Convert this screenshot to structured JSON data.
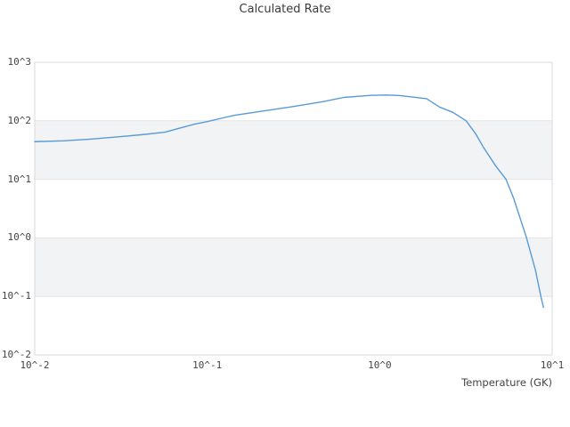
{
  "chart_data": {
    "type": "line",
    "title": "Calculated Rate",
    "xlabel": "Temperature (GK)",
    "ylabel": "",
    "x_scale": "log",
    "y_scale": "log",
    "xlim": [
      0.01,
      10
    ],
    "ylim": [
      0.01,
      1000
    ],
    "grid": "horizontal-decades",
    "legend": "none",
    "x_ticks": [
      {
        "label": "10^-2",
        "value": 0.01
      },
      {
        "label": "10^-1",
        "value": 0.1
      },
      {
        "label": "10^0",
        "value": 1
      },
      {
        "label": "10^1",
        "value": 10
      }
    ],
    "y_ticks": [
      {
        "label": "10^3",
        "value": 1000
      },
      {
        "label": "10^2",
        "value": 100
      },
      {
        "label": "10^1",
        "value": 10
      },
      {
        "label": "10^0",
        "value": 1
      },
      {
        "label": "10^-1",
        "value": 0.1
      },
      {
        "label": "10^-2",
        "value": 0.01
      }
    ],
    "shaded_bands": [
      {
        "from": 10,
        "to": 100
      },
      {
        "from": 0.1,
        "to": 1
      }
    ],
    "colors": {
      "line": "#5b9bd5",
      "band": "#f2f3f4",
      "grid": "#e4e4e4",
      "outline": "#d9d9d9",
      "tick_text": "#444444",
      "title_text": "#3a3a3a",
      "background": "#ffffff"
    },
    "series": [
      {
        "name": "calculated-rate",
        "x": [
          0.01,
          0.0146,
          0.021,
          0.03,
          0.042,
          0.057,
          0.068,
          0.085,
          0.1,
          0.143,
          0.215,
          0.317,
          0.468,
          0.62,
          0.89,
          1.1,
          1.31,
          1.87,
          2.22,
          2.65,
          3.17,
          3.6,
          4.0,
          4.7,
          5.4,
          6.0,
          7.1,
          8.0,
          8.6,
          8.9
        ],
        "y": [
          44,
          45.5,
          48.5,
          53,
          58,
          64,
          74,
          88,
          97,
          124,
          148,
          176,
          212,
          251,
          272,
          276,
          270,
          239,
          172,
          140,
          100,
          60,
          35,
          17,
          10,
          4.6,
          1.0,
          0.28,
          0.1,
          0.065
        ]
      }
    ]
  }
}
